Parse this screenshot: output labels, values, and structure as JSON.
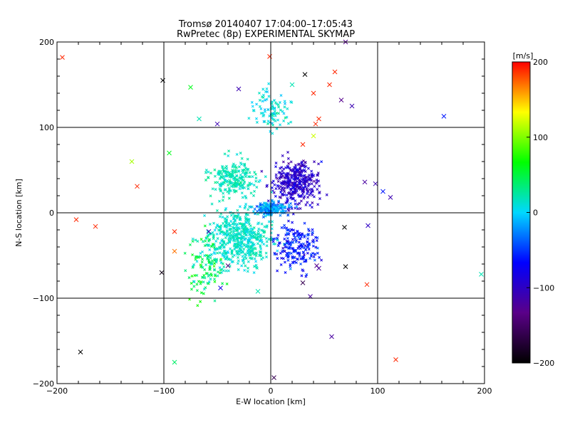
{
  "chart_data": {
    "type": "scatter",
    "title": "Tromsø 20140407 17:04:00–17:05:43",
    "subtitle": "RwPretec (8p) EXPERIMENTAL SKYMAP",
    "xlabel": "E-W location [km]",
    "ylabel": "N-S location [km]",
    "xlim": [
      -200,
      200
    ],
    "ylim": [
      -200,
      200
    ],
    "x_ticks": [
      "−200",
      "−100",
      "0",
      "100",
      "200"
    ],
    "y_ticks": [
      "−200",
      "−100",
      "0",
      "100",
      "200"
    ],
    "grid": true,
    "colorbar": {
      "title": "[m/s]",
      "min": -200,
      "max": 200,
      "ticks": [
        "200",
        "100",
        "0",
        "−100",
        "−200"
      ],
      "colormap": [
        "#000000",
        "#5a0088",
        "#0000ff",
        "#00d8ff",
        "#00ff00",
        "#ffff00",
        "#ff0000"
      ]
    },
    "points_large": [
      {
        "x": -195,
        "y": 182,
        "v": 190
      },
      {
        "x": -101,
        "y": 155,
        "v": -200
      },
      {
        "x": -95,
        "y": 70,
        "v": 60
      },
      {
        "x": -130,
        "y": 60,
        "v": 110
      },
      {
        "x": -125,
        "y": 31,
        "v": 190
      },
      {
        "x": -182,
        "y": -8,
        "v": 190
      },
      {
        "x": -164,
        "y": -16,
        "v": 190
      },
      {
        "x": -90,
        "y": -22,
        "v": 190
      },
      {
        "x": -102,
        "y": -70,
        "v": -190
      },
      {
        "x": -178,
        "y": -163,
        "v": -200
      },
      {
        "x": -90,
        "y": -45,
        "v": 170
      },
      {
        "x": -67,
        "y": 110,
        "v": 20
      },
      {
        "x": -75,
        "y": 147,
        "v": 60
      },
      {
        "x": -50,
        "y": 104,
        "v": -110
      },
      {
        "x": -58,
        "y": -22,
        "v": -110
      },
      {
        "x": -40,
        "y": -62,
        "v": -140
      },
      {
        "x": -47,
        "y": -88,
        "v": -80
      },
      {
        "x": -12,
        "y": -92,
        "v": 20
      },
      {
        "x": -90,
        "y": -175,
        "v": 40
      },
      {
        "x": 3,
        "y": -193,
        "v": -160
      },
      {
        "x": -30,
        "y": 145,
        "v": -110
      },
      {
        "x": 20,
        "y": 150,
        "v": 20
      },
      {
        "x": 40,
        "y": 140,
        "v": 190
      },
      {
        "x": 55,
        "y": 150,
        "v": 190
      },
      {
        "x": 60,
        "y": 165,
        "v": 190
      },
      {
        "x": 70,
        "y": 200,
        "v": -130
      },
      {
        "x": 32,
        "y": 162,
        "v": -200
      },
      {
        "x": 42,
        "y": 104,
        "v": 190
      },
      {
        "x": 45,
        "y": 110,
        "v": 190
      },
      {
        "x": 40,
        "y": 90,
        "v": 120
      },
      {
        "x": 30,
        "y": 80,
        "v": 190
      },
      {
        "x": 66,
        "y": 132,
        "v": -130
      },
      {
        "x": 76,
        "y": 125,
        "v": -110
      },
      {
        "x": 162,
        "y": 113,
        "v": -60
      },
      {
        "x": 88,
        "y": 36,
        "v": -120
      },
      {
        "x": 98,
        "y": 34,
        "v": -110
      },
      {
        "x": 112,
        "y": 18,
        "v": -110
      },
      {
        "x": 105,
        "y": 25,
        "v": -60
      },
      {
        "x": 91,
        "y": -15,
        "v": -100
      },
      {
        "x": 69,
        "y": -17,
        "v": -200
      },
      {
        "x": 70,
        "y": -63,
        "v": -200
      },
      {
        "x": 43,
        "y": -62,
        "v": -130
      },
      {
        "x": 45,
        "y": -65,
        "v": -120
      },
      {
        "x": 30,
        "y": -82,
        "v": -160
      },
      {
        "x": 37,
        "y": -98,
        "v": -120
      },
      {
        "x": 90,
        "y": -84,
        "v": 190
      },
      {
        "x": 117,
        "y": -172,
        "v": 190
      },
      {
        "x": 57,
        "y": -145,
        "v": -120
      },
      {
        "x": 197,
        "y": -72,
        "v": 20
      },
      {
        "x": -1,
        "y": 183,
        "v": 190
      }
    ]
  }
}
